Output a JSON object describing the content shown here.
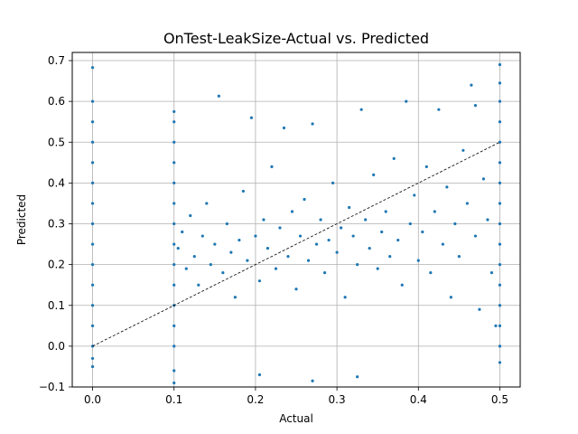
{
  "chart_data": {
    "type": "scatter",
    "title": "OnTest-LeakSize-Actual vs. Predicted",
    "xlabel": "Actual",
    "ylabel": "Predicted",
    "xlim": [
      -0.025,
      0.525
    ],
    "ylim": [
      -0.1,
      0.72
    ],
    "xticks": [
      0.0,
      0.1,
      0.2,
      0.3,
      0.4,
      0.5
    ],
    "xtick_labels": [
      "0.0",
      "0.1",
      "0.2",
      "0.3",
      "0.4",
      "0.5"
    ],
    "yticks": [
      -0.1,
      0.0,
      0.1,
      0.2,
      0.3,
      0.4,
      0.5,
      0.6,
      0.7
    ],
    "ytick_labels": [
      "−0.1",
      "0.0",
      "0.1",
      "0.2",
      "0.3",
      "0.4",
      "0.5",
      "0.6",
      "0.7"
    ],
    "grid": true,
    "colors": {
      "points": "#1f77b4",
      "grid": "#b0b0b0",
      "reference_line": "#000000",
      "axes": "#000000"
    },
    "reference_line": {
      "style": "dashed",
      "points": [
        [
          0.0,
          0.0
        ],
        [
          0.5,
          0.5
        ]
      ]
    },
    "series": [
      {
        "description": "discrete actual value columns",
        "points": [
          [
            0.0,
            0.683
          ],
          [
            0.0,
            0.6
          ],
          [
            0.0,
            0.55
          ],
          [
            0.0,
            0.5
          ],
          [
            0.0,
            0.45
          ],
          [
            0.0,
            0.4
          ],
          [
            0.0,
            0.35
          ],
          [
            0.0,
            0.3
          ],
          [
            0.0,
            0.25
          ],
          [
            0.0,
            0.2
          ],
          [
            0.0,
            0.15
          ],
          [
            0.0,
            0.1
          ],
          [
            0.0,
            0.05
          ],
          [
            0.0,
            0.0
          ],
          [
            0.0,
            -0.03
          ],
          [
            0.0,
            -0.05
          ],
          [
            0.1,
            0.575
          ],
          [
            0.1,
            0.55
          ],
          [
            0.1,
            0.5
          ],
          [
            0.1,
            0.45
          ],
          [
            0.1,
            0.4
          ],
          [
            0.1,
            0.35
          ],
          [
            0.1,
            0.3
          ],
          [
            0.1,
            0.25
          ],
          [
            0.1,
            0.2
          ],
          [
            0.1,
            0.15
          ],
          [
            0.1,
            0.1
          ],
          [
            0.1,
            0.05
          ],
          [
            0.1,
            0.0
          ],
          [
            0.1,
            -0.06
          ],
          [
            0.1,
            -0.09
          ],
          [
            0.5,
            0.69
          ],
          [
            0.5,
            0.645
          ],
          [
            0.5,
            0.6
          ],
          [
            0.5,
            0.55
          ],
          [
            0.5,
            0.5
          ],
          [
            0.5,
            0.45
          ],
          [
            0.5,
            0.4
          ],
          [
            0.5,
            0.35
          ],
          [
            0.5,
            0.3
          ],
          [
            0.5,
            0.25
          ],
          [
            0.5,
            0.2
          ],
          [
            0.5,
            0.15
          ],
          [
            0.5,
            0.1
          ],
          [
            0.5,
            0.05
          ],
          [
            0.5,
            0.0
          ],
          [
            0.5,
            -0.04
          ]
        ]
      },
      {
        "description": "continuous region sample",
        "points": [
          [
            0.105,
            0.24
          ],
          [
            0.11,
            0.28
          ],
          [
            0.115,
            0.19
          ],
          [
            0.12,
            0.32
          ],
          [
            0.125,
            0.22
          ],
          [
            0.13,
            0.15
          ],
          [
            0.135,
            0.27
          ],
          [
            0.14,
            0.35
          ],
          [
            0.145,
            0.2
          ],
          [
            0.15,
            0.25
          ],
          [
            0.155,
            0.613
          ],
          [
            0.16,
            0.18
          ],
          [
            0.165,
            0.3
          ],
          [
            0.17,
            0.23
          ],
          [
            0.175,
            0.12
          ],
          [
            0.18,
            0.26
          ],
          [
            0.185,
            0.38
          ],
          [
            0.19,
            0.21
          ],
          [
            0.195,
            0.56
          ],
          [
            0.2,
            0.27
          ],
          [
            0.205,
            0.16
          ],
          [
            0.21,
            0.31
          ],
          [
            0.215,
            0.24
          ],
          [
            0.22,
            0.44
          ],
          [
            0.225,
            0.19
          ],
          [
            0.23,
            0.29
          ],
          [
            0.235,
            0.535
          ],
          [
            0.24,
            0.22
          ],
          [
            0.245,
            0.33
          ],
          [
            0.25,
            0.14
          ],
          [
            0.255,
            0.27
          ],
          [
            0.26,
            0.36
          ],
          [
            0.265,
            0.21
          ],
          [
            0.27,
            0.545
          ],
          [
            0.275,
            0.25
          ],
          [
            0.28,
            0.31
          ],
          [
            0.285,
            0.18
          ],
          [
            0.29,
            0.26
          ],
          [
            0.295,
            0.4
          ],
          [
            0.3,
            0.23
          ],
          [
            0.305,
            0.29
          ],
          [
            0.31,
            0.12
          ],
          [
            0.315,
            0.34
          ],
          [
            0.32,
            0.27
          ],
          [
            0.325,
            0.2
          ],
          [
            0.33,
            0.58
          ],
          [
            0.335,
            0.31
          ],
          [
            0.34,
            0.24
          ],
          [
            0.345,
            0.42
          ],
          [
            0.35,
            0.19
          ],
          [
            0.355,
            0.28
          ],
          [
            0.36,
            0.33
          ],
          [
            0.365,
            0.22
          ],
          [
            0.37,
            0.46
          ],
          [
            0.375,
            0.26
          ],
          [
            0.38,
            0.15
          ],
          [
            0.385,
            0.6
          ],
          [
            0.39,
            0.3
          ],
          [
            0.395,
            0.37
          ],
          [
            0.4,
            0.21
          ],
          [
            0.405,
            0.28
          ],
          [
            0.41,
            0.44
          ],
          [
            0.415,
            0.18
          ],
          [
            0.42,
            0.33
          ],
          [
            0.425,
            0.58
          ],
          [
            0.43,
            0.25
          ],
          [
            0.435,
            0.39
          ],
          [
            0.44,
            0.12
          ],
          [
            0.445,
            0.3
          ],
          [
            0.45,
            0.22
          ],
          [
            0.455,
            0.48
          ],
          [
            0.46,
            0.35
          ],
          [
            0.465,
            0.64
          ],
          [
            0.47,
            0.27
          ],
          [
            0.475,
            0.09
          ],
          [
            0.48,
            0.41
          ],
          [
            0.485,
            0.31
          ],
          [
            0.49,
            0.18
          ],
          [
            0.495,
            0.05
          ],
          [
            0.325,
            -0.075
          ],
          [
            0.27,
            -0.085
          ],
          [
            0.205,
            -0.07
          ],
          [
            0.47,
            0.59
          ]
        ]
      }
    ]
  }
}
